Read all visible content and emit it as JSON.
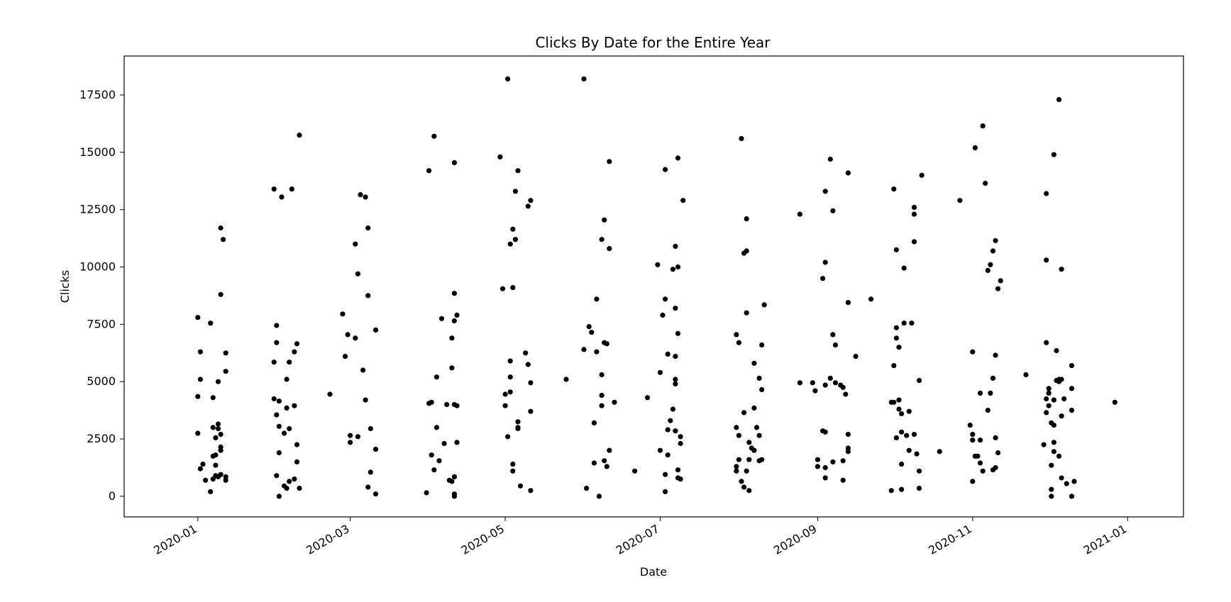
{
  "chart_data": {
    "type": "scatter",
    "title": "Clicks By Date for the Entire Year",
    "xlabel": "Date",
    "ylabel": "Clicks",
    "xlim": [
      "2019-12-03",
      "2021-01-23"
    ],
    "ylim": [
      -900,
      19200
    ],
    "x_ticks": [
      "2020-01",
      "2020-03",
      "2020-05",
      "2020-07",
      "2020-09",
      "2020-11",
      "2021-01"
    ],
    "y_ticks": [
      0,
      2500,
      5000,
      7500,
      10000,
      12500,
      15000,
      17500
    ],
    "grid": false,
    "legend": false,
    "marker_color": "#000000",
    "points": [
      [
        "2020-01-01",
        7800
      ],
      [
        "2020-01-01",
        4350
      ],
      [
        "2020-01-01",
        2750
      ],
      [
        "2020-01-02",
        6300
      ],
      [
        "2020-01-02",
        5100
      ],
      [
        "2020-01-02",
        1200
      ],
      [
        "2020-01-03",
        1400
      ],
      [
        "2020-01-04",
        700
      ],
      [
        "2020-01-06",
        7550
      ],
      [
        "2020-01-06",
        200
      ],
      [
        "2020-01-07",
        4300
      ],
      [
        "2020-01-07",
        3000
      ],
      [
        "2020-01-07",
        1750
      ],
      [
        "2020-01-07",
        750
      ],
      [
        "2020-01-08",
        2550
      ],
      [
        "2020-01-08",
        1800
      ],
      [
        "2020-01-08",
        1350
      ],
      [
        "2020-01-08",
        900
      ],
      [
        "2020-01-09",
        5000
      ],
      [
        "2020-01-09",
        3150
      ],
      [
        "2020-01-09",
        2950
      ],
      [
        "2020-01-09",
        850
      ],
      [
        "2020-01-10",
        11700
      ],
      [
        "2020-01-10",
        8800
      ],
      [
        "2020-01-10",
        2700
      ],
      [
        "2020-01-10",
        2150
      ],
      [
        "2020-01-10",
        2000
      ],
      [
        "2020-01-10",
        950
      ],
      [
        "2020-01-11",
        11200
      ],
      [
        "2020-01-12",
        6250
      ],
      [
        "2020-01-12",
        5450
      ],
      [
        "2020-01-12",
        850
      ],
      [
        "2020-01-12",
        700
      ],
      [
        "2020-01-31",
        13400
      ],
      [
        "2020-01-31",
        5850
      ],
      [
        "2020-01-31",
        4250
      ],
      [
        "2020-02-01",
        7450
      ],
      [
        "2020-02-01",
        6700
      ],
      [
        "2020-02-01",
        3550
      ],
      [
        "2020-02-01",
        900
      ],
      [
        "2020-02-02",
        4150
      ],
      [
        "2020-02-02",
        3050
      ],
      [
        "2020-02-02",
        1900
      ],
      [
        "2020-02-02",
        0
      ],
      [
        "2020-02-03",
        13050
      ],
      [
        "2020-02-04",
        2750
      ],
      [
        "2020-02-04",
        450
      ],
      [
        "2020-02-05",
        5100
      ],
      [
        "2020-02-05",
        3850
      ],
      [
        "2020-02-05",
        350
      ],
      [
        "2020-02-06",
        5850
      ],
      [
        "2020-02-06",
        2950
      ],
      [
        "2020-02-06",
        650
      ],
      [
        "2020-02-07",
        13400
      ],
      [
        "2020-02-08",
        6300
      ],
      [
        "2020-02-08",
        3950
      ],
      [
        "2020-02-08",
        750
      ],
      [
        "2020-02-09",
        6650
      ],
      [
        "2020-02-09",
        2250
      ],
      [
        "2020-02-09",
        1500
      ],
      [
        "2020-02-10",
        15750
      ],
      [
        "2020-02-10",
        350
      ],
      [
        "2020-02-22",
        4450
      ],
      [
        "2020-02-27",
        7950
      ],
      [
        "2020-02-28",
        6100
      ],
      [
        "2020-02-29",
        7050
      ],
      [
        "2020-03-01",
        2650
      ],
      [
        "2020-03-01",
        2350
      ],
      [
        "2020-03-03",
        11000
      ],
      [
        "2020-03-03",
        6900
      ],
      [
        "2020-03-04",
        9700
      ],
      [
        "2020-03-04",
        2600
      ],
      [
        "2020-03-05",
        13150
      ],
      [
        "2020-03-06",
        5500
      ],
      [
        "2020-03-07",
        13050
      ],
      [
        "2020-03-07",
        4200
      ],
      [
        "2020-03-08",
        11700
      ],
      [
        "2020-03-08",
        8750
      ],
      [
        "2020-03-08",
        400
      ],
      [
        "2020-03-09",
        2950
      ],
      [
        "2020-03-09",
        1050
      ],
      [
        "2020-03-11",
        7250
      ],
      [
        "2020-03-11",
        2050
      ],
      [
        "2020-03-11",
        100
      ],
      [
        "2020-03-31",
        150
      ],
      [
        "2020-04-01",
        14200
      ],
      [
        "2020-04-01",
        4050
      ],
      [
        "2020-04-02",
        4100
      ],
      [
        "2020-04-02",
        1800
      ],
      [
        "2020-04-03",
        15700
      ],
      [
        "2020-04-03",
        1150
      ],
      [
        "2020-04-04",
        5200
      ],
      [
        "2020-04-04",
        3000
      ],
      [
        "2020-04-05",
        1550
      ],
      [
        "2020-04-06",
        7750
      ],
      [
        "2020-04-07",
        2300
      ],
      [
        "2020-04-08",
        4000
      ],
      [
        "2020-04-09",
        700
      ],
      [
        "2020-04-10",
        6900
      ],
      [
        "2020-04-10",
        5600
      ],
      [
        "2020-04-10",
        650
      ],
      [
        "2020-04-11",
        14550
      ],
      [
        "2020-04-11",
        8850
      ],
      [
        "2020-04-11",
        7650
      ],
      [
        "2020-04-11",
        4000
      ],
      [
        "2020-04-11",
        850
      ],
      [
        "2020-04-11",
        100
      ],
      [
        "2020-04-11",
        0
      ],
      [
        "2020-04-12",
        7900
      ],
      [
        "2020-04-12",
        3950
      ],
      [
        "2020-04-12",
        2350
      ],
      [
        "2020-04-29",
        14800
      ],
      [
        "2020-04-30",
        9050
      ],
      [
        "2020-05-01",
        4450
      ],
      [
        "2020-05-01",
        3950
      ],
      [
        "2020-05-02",
        18200
      ],
      [
        "2020-05-02",
        2600
      ],
      [
        "2020-05-03",
        11000
      ],
      [
        "2020-05-03",
        5900
      ],
      [
        "2020-05-03",
        5200
      ],
      [
        "2020-05-03",
        4550
      ],
      [
        "2020-05-04",
        11650
      ],
      [
        "2020-05-04",
        9100
      ],
      [
        "2020-05-04",
        1400
      ],
      [
        "2020-05-04",
        1100
      ],
      [
        "2020-05-05",
        13300
      ],
      [
        "2020-05-05",
        11200
      ],
      [
        "2020-05-06",
        14200
      ],
      [
        "2020-05-06",
        3250
      ],
      [
        "2020-05-06",
        3000
      ],
      [
        "2020-05-06",
        2950
      ],
      [
        "2020-05-07",
        450
      ],
      [
        "2020-05-09",
        6250
      ],
      [
        "2020-05-10",
        5750
      ],
      [
        "2020-05-10",
        12650
      ],
      [
        "2020-05-11",
        12900
      ],
      [
        "2020-05-11",
        4950
      ],
      [
        "2020-05-11",
        3700
      ],
      [
        "2020-05-11",
        250
      ],
      [
        "2020-05-25",
        5100
      ],
      [
        "2020-06-01",
        6400
      ],
      [
        "2020-06-01",
        18200
      ],
      [
        "2020-06-02",
        350
      ],
      [
        "2020-06-03",
        7400
      ],
      [
        "2020-06-04",
        7150
      ],
      [
        "2020-06-05",
        3200
      ],
      [
        "2020-06-05",
        1450
      ],
      [
        "2020-06-06",
        8600
      ],
      [
        "2020-06-06",
        6300
      ],
      [
        "2020-06-07",
        0
      ],
      [
        "2020-06-08",
        11200
      ],
      [
        "2020-06-08",
        5300
      ],
      [
        "2020-06-08",
        4400
      ],
      [
        "2020-06-08",
        3950
      ],
      [
        "2020-06-09",
        12050
      ],
      [
        "2020-06-09",
        6700
      ],
      [
        "2020-06-09",
        1550
      ],
      [
        "2020-06-10",
        6650
      ],
      [
        "2020-06-10",
        1300
      ],
      [
        "2020-06-11",
        14600
      ],
      [
        "2020-06-11",
        10800
      ],
      [
        "2020-06-11",
        2000
      ],
      [
        "2020-06-13",
        4100
      ],
      [
        "2020-06-21",
        1100
      ],
      [
        "2020-06-26",
        4300
      ],
      [
        "2020-06-30",
        10100
      ],
      [
        "2020-07-01",
        5400
      ],
      [
        "2020-07-01",
        2000
      ],
      [
        "2020-07-02",
        7900
      ],
      [
        "2020-07-03",
        8600
      ],
      [
        "2020-07-03",
        14250
      ],
      [
        "2020-07-03",
        950
      ],
      [
        "2020-07-03",
        200
      ],
      [
        "2020-07-04",
        1800
      ],
      [
        "2020-07-04",
        2900
      ],
      [
        "2020-07-04",
        6200
      ],
      [
        "2020-07-05",
        3300
      ],
      [
        "2020-07-06",
        3800
      ],
      [
        "2020-07-06",
        9900
      ],
      [
        "2020-07-07",
        10900
      ],
      [
        "2020-07-07",
        8200
      ],
      [
        "2020-07-07",
        6100
      ],
      [
        "2020-07-07",
        5100
      ],
      [
        "2020-07-07",
        4900
      ],
      [
        "2020-07-07",
        2850
      ],
      [
        "2020-07-08",
        14750
      ],
      [
        "2020-07-08",
        10000
      ],
      [
        "2020-07-08",
        7100
      ],
      [
        "2020-07-08",
        1150
      ],
      [
        "2020-07-08",
        800
      ],
      [
        "2020-07-09",
        2300
      ],
      [
        "2020-07-09",
        2600
      ],
      [
        "2020-07-09",
        750
      ],
      [
        "2020-07-10",
        12900
      ],
      [
        "2020-07-31",
        1300
      ],
      [
        "2020-07-31",
        1100
      ],
      [
        "2020-07-31",
        3000
      ],
      [
        "2020-07-31",
        7050
      ],
      [
        "2020-08-01",
        6700
      ],
      [
        "2020-08-01",
        2650
      ],
      [
        "2020-08-01",
        1600
      ],
      [
        "2020-08-02",
        15600
      ],
      [
        "2020-08-02",
        650
      ],
      [
        "2020-08-03",
        10600
      ],
      [
        "2020-08-03",
        3650
      ],
      [
        "2020-08-03",
        400
      ],
      [
        "2020-08-04",
        10700
      ],
      [
        "2020-08-04",
        12100
      ],
      [
        "2020-08-04",
        1100
      ],
      [
        "2020-08-04",
        8000
      ],
      [
        "2020-08-05",
        2350
      ],
      [
        "2020-08-05",
        1600
      ],
      [
        "2020-08-05",
        250
      ],
      [
        "2020-08-06",
        2100
      ],
      [
        "2020-08-07",
        5800
      ],
      [
        "2020-08-07",
        3850
      ],
      [
        "2020-08-07",
        2000
      ],
      [
        "2020-08-08",
        3000
      ],
      [
        "2020-08-09",
        5150
      ],
      [
        "2020-08-09",
        2650
      ],
      [
        "2020-08-09",
        1550
      ],
      [
        "2020-08-10",
        6600
      ],
      [
        "2020-08-10",
        4650
      ],
      [
        "2020-08-10",
        1600
      ],
      [
        "2020-08-11",
        8350
      ],
      [
        "2020-08-25",
        12300
      ],
      [
        "2020-08-25",
        4950
      ],
      [
        "2020-08-30",
        4950
      ],
      [
        "2020-08-31",
        4600
      ],
      [
        "2020-09-01",
        1600
      ],
      [
        "2020-09-01",
        1300
      ],
      [
        "2020-09-03",
        9500
      ],
      [
        "2020-09-03",
        2850
      ],
      [
        "2020-09-04",
        13300
      ],
      [
        "2020-09-04",
        10200
      ],
      [
        "2020-09-04",
        4850
      ],
      [
        "2020-09-04",
        2800
      ],
      [
        "2020-09-04",
        1250
      ],
      [
        "2020-09-04",
        800
      ],
      [
        "2020-09-06",
        14700
      ],
      [
        "2020-09-06",
        5150
      ],
      [
        "2020-09-07",
        12450
      ],
      [
        "2020-09-07",
        7050
      ],
      [
        "2020-09-07",
        1500
      ],
      [
        "2020-09-08",
        6600
      ],
      [
        "2020-09-08",
        4950
      ],
      [
        "2020-09-10",
        4850
      ],
      [
        "2020-09-11",
        4750
      ],
      [
        "2020-09-11",
        1550
      ],
      [
        "2020-09-11",
        700
      ],
      [
        "2020-09-12",
        4450
      ],
      [
        "2020-09-13",
        14100
      ],
      [
        "2020-09-13",
        8450
      ],
      [
        "2020-09-13",
        2700
      ],
      [
        "2020-09-13",
        2100
      ],
      [
        "2020-09-13",
        1950
      ],
      [
        "2020-09-16",
        6100
      ],
      [
        "2020-09-22",
        8600
      ],
      [
        "2020-09-30",
        4100
      ],
      [
        "2020-09-30",
        250
      ],
      [
        "2020-10-01",
        5700
      ],
      [
        "2020-10-01",
        13400
      ],
      [
        "2020-10-01",
        4100
      ],
      [
        "2020-10-02",
        10750
      ],
      [
        "2020-10-02",
        7350
      ],
      [
        "2020-10-02",
        6900
      ],
      [
        "2020-10-02",
        2550
      ],
      [
        "2020-10-03",
        6500
      ],
      [
        "2020-10-03",
        4200
      ],
      [
        "2020-10-03",
        3800
      ],
      [
        "2020-10-04",
        3600
      ],
      [
        "2020-10-04",
        2800
      ],
      [
        "2020-10-04",
        1400
      ],
      [
        "2020-10-04",
        300
      ],
      [
        "2020-10-05",
        9950
      ],
      [
        "2020-10-05",
        7550
      ],
      [
        "2020-10-06",
        2650
      ],
      [
        "2020-10-07",
        3700
      ],
      [
        "2020-10-07",
        2000
      ],
      [
        "2020-10-08",
        7550
      ],
      [
        "2020-10-09",
        12600
      ],
      [
        "2020-10-09",
        12300
      ],
      [
        "2020-10-09",
        11100
      ],
      [
        "2020-10-09",
        2700
      ],
      [
        "2020-10-10",
        1850
      ],
      [
        "2020-10-11",
        5050
      ],
      [
        "2020-10-11",
        1100
      ],
      [
        "2020-10-11",
        350
      ],
      [
        "2020-10-12",
        14000
      ],
      [
        "2020-10-19",
        1950
      ],
      [
        "2020-10-27",
        12900
      ],
      [
        "2020-10-31",
        3100
      ],
      [
        "2020-11-01",
        6300
      ],
      [
        "2020-11-01",
        2700
      ],
      [
        "2020-11-01",
        2450
      ],
      [
        "2020-11-01",
        650
      ],
      [
        "2020-11-02",
        15200
      ],
      [
        "2020-11-02",
        1750
      ],
      [
        "2020-11-03",
        1750
      ],
      [
        "2020-11-04",
        4500
      ],
      [
        "2020-11-04",
        2450
      ],
      [
        "2020-11-04",
        1450
      ],
      [
        "2020-11-05",
        16150
      ],
      [
        "2020-11-05",
        1100
      ],
      [
        "2020-11-06",
        13650
      ],
      [
        "2020-11-07",
        9850
      ],
      [
        "2020-11-07",
        3750
      ],
      [
        "2020-11-08",
        10100
      ],
      [
        "2020-11-08",
        4500
      ],
      [
        "2020-11-09",
        10700
      ],
      [
        "2020-11-09",
        5150
      ],
      [
        "2020-11-09",
        1150
      ],
      [
        "2020-11-10",
        11150
      ],
      [
        "2020-11-10",
        6150
      ],
      [
        "2020-11-10",
        2550
      ],
      [
        "2020-11-10",
        1250
      ],
      [
        "2020-11-11",
        9050
      ],
      [
        "2020-11-11",
        1900
      ],
      [
        "2020-11-12",
        9400
      ],
      [
        "2020-11-22",
        5300
      ],
      [
        "2020-11-29",
        2250
      ],
      [
        "2020-11-30",
        13200
      ],
      [
        "2020-11-30",
        10300
      ],
      [
        "2020-11-30",
        6700
      ],
      [
        "2020-11-30",
        4250
      ],
      [
        "2020-11-30",
        3650
      ],
      [
        "2020-12-01",
        4500
      ],
      [
        "2020-12-01",
        4700
      ],
      [
        "2020-12-01",
        3950
      ],
      [
        "2020-12-02",
        3200
      ],
      [
        "2020-12-02",
        1350
      ],
      [
        "2020-12-02",
        300
      ],
      [
        "2020-12-02",
        0
      ],
      [
        "2020-12-03",
        14900
      ],
      [
        "2020-12-03",
        4200
      ],
      [
        "2020-12-03",
        3100
      ],
      [
        "2020-12-03",
        2350
      ],
      [
        "2020-12-03",
        1950
      ],
      [
        "2020-12-04",
        6350
      ],
      [
        "2020-12-04",
        5050
      ],
      [
        "2020-12-05",
        17300
      ],
      [
        "2020-12-05",
        5100
      ],
      [
        "2020-12-05",
        5000
      ],
      [
        "2020-12-05",
        1750
      ],
      [
        "2020-12-06",
        9900
      ],
      [
        "2020-12-06",
        5100
      ],
      [
        "2020-12-06",
        3500
      ],
      [
        "2020-12-06",
        800
      ],
      [
        "2020-12-07",
        4250
      ],
      [
        "2020-12-08",
        550
      ],
      [
        "2020-12-10",
        5700
      ],
      [
        "2020-12-10",
        4700
      ],
      [
        "2020-12-10",
        3750
      ],
      [
        "2020-12-10",
        0
      ],
      [
        "2020-12-11",
        650
      ],
      [
        "2020-12-27",
        4100
      ]
    ]
  }
}
